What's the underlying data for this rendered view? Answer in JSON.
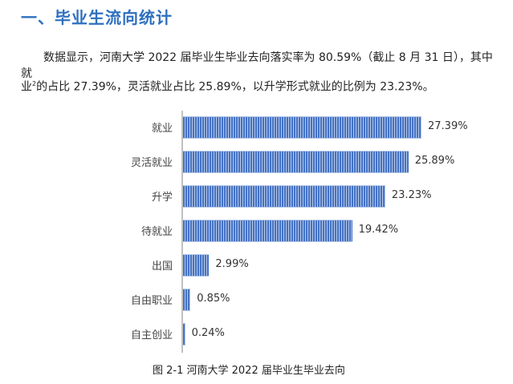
{
  "heading": "一、毕业生流向统计",
  "paragraph": {
    "line1": "数据显示，河南大学 2022 届毕业生毕业去向落实率为 80.59%（截止 8 月 31 日），其中就",
    "line2_pre": "业",
    "line2_sup": "2",
    "line2_post": "的占比 27.39%，灵活就业占比 25.89%，以升学形式就业的比例为 23.23%。"
  },
  "caption": "图  2-1    河南大学 2022 届毕业生毕业去向",
  "colors": {
    "bar": "#4472c4",
    "bar_light": "#b4c7e7",
    "heading": "#2e6fbf"
  },
  "chart_data": {
    "type": "bar",
    "orientation": "horizontal",
    "title": "河南大学 2022 届毕业生毕业去向",
    "categories": [
      "就业",
      "灵活就业",
      "升学",
      "待就业",
      "出国",
      "自由职业",
      "自主创业"
    ],
    "values": [
      27.39,
      25.89,
      23.23,
      19.42,
      2.99,
      0.85,
      0.24
    ],
    "value_labels": [
      "27.39%",
      "25.89%",
      "23.23%",
      "19.42%",
      "2.99%",
      "0.85%",
      "0.24%"
    ],
    "unit": "%",
    "xlabel": "",
    "ylabel": "",
    "grid": false,
    "legend": false
  }
}
